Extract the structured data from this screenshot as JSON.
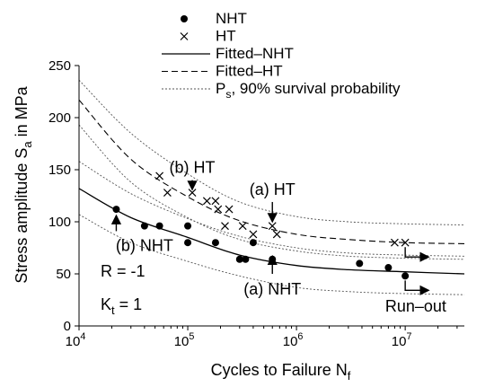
{
  "chart_data": {
    "type": "scatter",
    "title": "",
    "x_scale": "log",
    "xlabel": {
      "main": "Cycles to Failure N",
      "sub": "f"
    },
    "ylabel": {
      "main": "Stress amplitude S",
      "sub": "a",
      "tail": " in MPa"
    },
    "xlim": [
      10000,
      35000000
    ],
    "ylim": [
      0,
      250
    ],
    "xticks": [
      {
        "value": 10000,
        "base": "10",
        "exp": "4"
      },
      {
        "value": 100000,
        "base": "10",
        "exp": "5"
      },
      {
        "value": 1000000,
        "base": "10",
        "exp": "6"
      },
      {
        "value": 10000000,
        "base": "10",
        "exp": "7"
      }
    ],
    "yticks": [
      "0",
      "50",
      "100",
      "150",
      "200",
      "250"
    ],
    "legend": {
      "position": "top",
      "entries": [
        {
          "key": "nht",
          "label": "NHT"
        },
        {
          "key": "ht",
          "label": "HT"
        },
        {
          "key": "fit_nht",
          "label": "Fitted–NHT"
        },
        {
          "key": "fit_ht",
          "label": "Fitted–HT"
        },
        {
          "key": "ps",
          "label_main": "P",
          "label_sub": "s",
          "label_tail": ", 90% survival probability"
        }
      ]
    },
    "series": [
      {
        "name": "NHT",
        "marker": "dot",
        "points": [
          [
            22000,
            112
          ],
          [
            40000,
            96
          ],
          [
            55000,
            96
          ],
          [
            100000,
            96
          ],
          [
            100000,
            80
          ],
          [
            180000,
            80
          ],
          [
            300000,
            64
          ],
          [
            340000,
            64
          ],
          [
            400000,
            80
          ],
          [
            600000,
            64
          ],
          [
            3800000,
            60
          ],
          [
            7000000,
            56
          ],
          [
            10000000,
            48
          ]
        ]
      },
      {
        "name": "HT",
        "marker": "cross",
        "points": [
          [
            55000,
            144
          ],
          [
            65000,
            128
          ],
          [
            110000,
            128
          ],
          [
            150000,
            120
          ],
          [
            180000,
            120
          ],
          [
            190000,
            112
          ],
          [
            220000,
            96
          ],
          [
            240000,
            112
          ],
          [
            320000,
            96
          ],
          [
            400000,
            88
          ],
          [
            600000,
            96
          ],
          [
            660000,
            88
          ],
          [
            8000000,
            80
          ],
          [
            10000000,
            80
          ]
        ]
      },
      {
        "name": "Fitted–NHT",
        "style": "solid",
        "points": [
          [
            10000,
            132
          ],
          [
            30000,
            104
          ],
          [
            100000,
            85
          ],
          [
            300000,
            68
          ],
          [
            1000000,
            58
          ],
          [
            3000000,
            54
          ],
          [
            10000000,
            52
          ],
          [
            35000000,
            50
          ]
        ]
      },
      {
        "name": "Fitted–HT",
        "style": "dashed",
        "points": [
          [
            10000,
            217
          ],
          [
            30000,
            160
          ],
          [
            100000,
            124
          ],
          [
            300000,
            101
          ],
          [
            1000000,
            88
          ],
          [
            3000000,
            83
          ],
          [
            10000000,
            80
          ],
          [
            35000000,
            79
          ]
        ]
      },
      {
        "name": "Pₛ, 90% survival probability",
        "style": "dotted",
        "curves": [
          [
            [
              10000,
              236
            ],
            [
              30000,
              185
            ],
            [
              100000,
              146
            ],
            [
              300000,
              119
            ],
            [
              1000000,
              105
            ],
            [
              3000000,
              100
            ],
            [
              10000000,
              98
            ],
            [
              35000000,
              97
            ]
          ],
          [
            [
              10000,
              193
            ],
            [
              30000,
              138
            ],
            [
              100000,
              104
            ],
            [
              300000,
              83
            ],
            [
              1000000,
              72
            ],
            [
              3000000,
              67
            ],
            [
              10000000,
              65
            ],
            [
              35000000,
              64
            ]
          ],
          [
            [
              10000,
              158
            ],
            [
              30000,
              127
            ],
            [
              100000,
              103
            ],
            [
              300000,
              86
            ],
            [
              1000000,
              75
            ],
            [
              3000000,
              70
            ],
            [
              10000000,
              68
            ],
            [
              35000000,
              67
            ]
          ],
          [
            [
              10000,
              107
            ],
            [
              30000,
              80
            ],
            [
              100000,
              62
            ],
            [
              300000,
              48
            ],
            [
              1000000,
              37
            ],
            [
              3000000,
              33
            ],
            [
              10000000,
              31
            ],
            [
              35000000,
              30
            ]
          ]
        ]
      }
    ],
    "annotations": [
      {
        "text": "(b) HT",
        "x": 110000,
        "y": 147,
        "arrow": {
          "from": [
            110000,
            140
          ],
          "to": [
            110000,
            131
          ]
        }
      },
      {
        "text": "(a) HT",
        "x": 600000,
        "y": 126,
        "arrow": {
          "from": [
            600000,
            119
          ],
          "to": [
            600000,
            100
          ]
        }
      },
      {
        "text": "(b) NHT",
        "x": 40000,
        "y": 72,
        "arrow": {
          "from": [
            22000,
            91
          ],
          "to": [
            22000,
            106
          ]
        }
      },
      {
        "text": "(a) NHT",
        "x": 600000,
        "y": 30,
        "arrow": {
          "from": [
            600000,
            50
          ],
          "to": [
            600000,
            67
          ]
        }
      },
      {
        "text": "Run–out",
        "x": 12500000,
        "y": 14,
        "arrow": null
      }
    ],
    "runout_arrows": [
      [
        10000000,
        80
      ],
      [
        10000000,
        48
      ]
    ],
    "conditions": [
      {
        "main": "R  = -1",
        "sub": ""
      },
      {
        "main": "K",
        "sub": "t",
        "tail": " =  1"
      }
    ]
  }
}
